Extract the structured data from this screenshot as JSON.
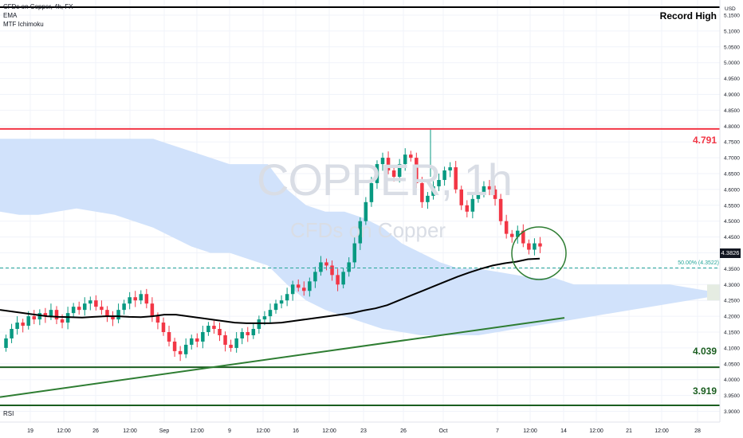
{
  "legend": {
    "title": "CFDs on Copper, 4h, FX",
    "ema": "EMA",
    "ichimoku": "MTF Ichimoku"
  },
  "watermark": {
    "symbol": "COPPER, 1h",
    "description": "CFDs on Copper"
  },
  "annotation": {
    "record_high": "Record High",
    "fib_level": "50.00% (4.3522)"
  },
  "rsi_label": "RSI",
  "last_price": "4.3826",
  "levels": [
    {
      "label": "4.791",
      "price": 4.791,
      "color": "#f23645"
    },
    {
      "label": "4.039",
      "price": 4.039,
      "color": "#1b5e20"
    },
    {
      "label": "3.919",
      "price": 3.919,
      "color": "#1b5e20"
    }
  ],
  "chart_data": {
    "type": "candlestick",
    "currency": "USD",
    "y_ticks": [
      "5.1500",
      "5.1000",
      "5.0500",
      "5.0000",
      "4.9500",
      "4.9000",
      "4.8500",
      "4.8000",
      "4.7500",
      "4.7000",
      "4.6500",
      "4.6000",
      "4.5500",
      "4.5000",
      "4.4500",
      "4.4000",
      "4.3500",
      "4.3000",
      "4.2500",
      "4.2000",
      "4.1500",
      "4.1000",
      "4.0500",
      "4.0000",
      "3.9500",
      "3.9000"
    ],
    "x_ticks": [
      "19",
      "12:00",
      "26",
      "12:00",
      "Sep",
      "12:00",
      "9",
      "12:00",
      "16",
      "12:00",
      "23",
      "26",
      "Oct",
      "7",
      "12:00",
      "14",
      "12:00",
      "21",
      "12:00",
      "28"
    ],
    "ylim": [
      3.89,
      5.175
    ],
    "record_high_level": 5.165,
    "fib_50_level": 4.3522,
    "colors": {
      "up": "#089981",
      "down": "#f23645",
      "cloud": "#cfe0fb",
      "ema": "#000000",
      "trendline": "#2e7d32"
    },
    "closes": [
      4.13,
      4.16,
      4.18,
      4.17,
      4.2,
      4.19,
      4.21,
      4.2,
      4.22,
      4.19,
      4.18,
      4.21,
      4.23,
      4.22,
      4.24,
      4.25,
      4.23,
      4.22,
      4.2,
      4.19,
      4.22,
      4.24,
      4.26,
      4.25,
      4.27,
      4.24,
      4.2,
      4.18,
      4.15,
      4.12,
      4.09,
      4.08,
      4.11,
      4.13,
      4.12,
      4.15,
      4.17,
      4.16,
      4.14,
      4.11,
      4.1,
      4.13,
      4.15,
      4.14,
      4.16,
      4.19,
      4.2,
      4.22,
      4.24,
      4.25,
      4.27,
      4.3,
      4.29,
      4.28,
      4.31,
      4.34,
      4.37,
      4.36,
      4.33,
      4.3,
      4.34,
      4.37,
      4.43,
      4.5,
      4.56,
      4.62,
      4.68,
      4.7,
      4.66,
      4.64,
      4.68,
      4.71,
      4.7,
      4.62,
      4.56,
      4.58,
      4.61,
      4.63,
      4.66,
      4.67,
      4.6,
      4.55,
      4.53,
      4.57,
      4.59,
      4.61,
      4.6,
      4.57,
      4.5,
      4.46,
      4.45,
      4.47,
      4.43,
      4.41,
      4.43,
      4.42
    ],
    "ema": [
      4.22,
      4.215,
      4.21,
      4.205,
      4.2,
      4.198,
      4.197,
      4.196,
      4.198,
      4.2,
      4.2,
      4.198,
      4.197,
      4.2,
      4.205,
      4.205,
      4.2,
      4.195,
      4.19,
      4.185,
      4.18,
      4.178,
      4.178,
      4.178,
      4.18,
      4.185,
      4.19,
      4.195,
      4.2,
      4.205,
      4.21,
      4.218,
      4.225,
      4.235,
      4.25,
      4.265,
      4.28,
      4.295,
      4.31,
      4.325,
      4.338,
      4.35,
      4.36,
      4.367,
      4.372,
      4.38,
      4.382
    ],
    "cloud_top": [
      4.76,
      4.76,
      4.76,
      4.76,
      4.76,
      4.76,
      4.76,
      4.76,
      4.76,
      4.74,
      4.72,
      4.7,
      4.68,
      4.68,
      4.68,
      4.6,
      4.55,
      4.53,
      4.53,
      4.51,
      4.48,
      4.43,
      4.4,
      4.37,
      4.35,
      4.35,
      4.34,
      4.33,
      4.32,
      4.32,
      4.3,
      4.3,
      4.3,
      4.3,
      4.3,
      4.3,
      4.29,
      4.28
    ],
    "cloud_bottom": [
      4.53,
      4.52,
      4.52,
      4.53,
      4.54,
      4.53,
      4.52,
      4.5,
      4.48,
      4.45,
      4.42,
      4.4,
      4.4,
      4.38,
      4.36,
      4.3,
      4.25,
      4.22,
      4.2,
      4.18,
      4.16,
      4.15,
      4.14,
      4.14,
      4.14,
      4.14,
      4.15,
      4.16,
      4.17,
      4.18,
      4.19,
      4.2,
      4.21,
      4.22,
      4.23,
      4.24,
      4.25,
      4.26
    ],
    "trendline": [
      [
        3.945
      ],
      [
        4.195
      ]
    ]
  }
}
